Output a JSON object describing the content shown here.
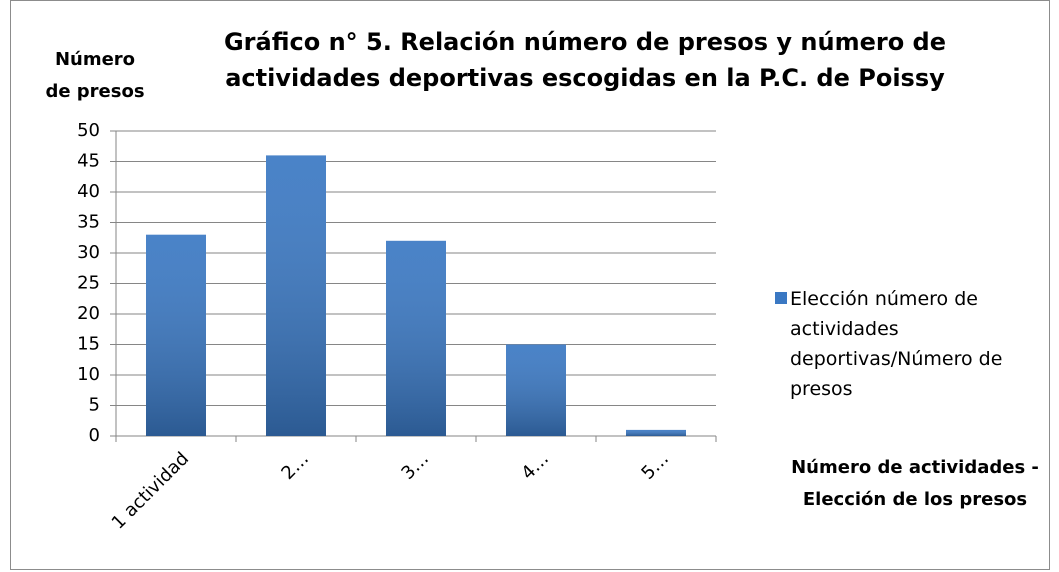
{
  "chart_data": {
    "type": "bar",
    "title": [
      "Gráfico n° 5. Relación número de presos y número de",
      "actividades deportivas escogidas en la P.C. de Poissy"
    ],
    "y_label": [
      "Número",
      "de presos"
    ],
    "x_label": [
      "Número de actividades -",
      "Elección de los presos"
    ],
    "categories": [
      "1 actividad",
      "2…",
      "3…",
      "4…",
      "5…"
    ],
    "series": [
      {
        "name": "Elección número de actividades deportivas/Número de presos",
        "color": "#3a78c3",
        "values": [
          33,
          46,
          32,
          15,
          1
        ]
      }
    ],
    "ylim": [
      0,
      50
    ],
    "yticks": [
      0,
      5,
      10,
      15,
      20,
      25,
      30,
      35,
      40,
      45,
      50
    ],
    "grid": true,
    "legend": "right"
  }
}
